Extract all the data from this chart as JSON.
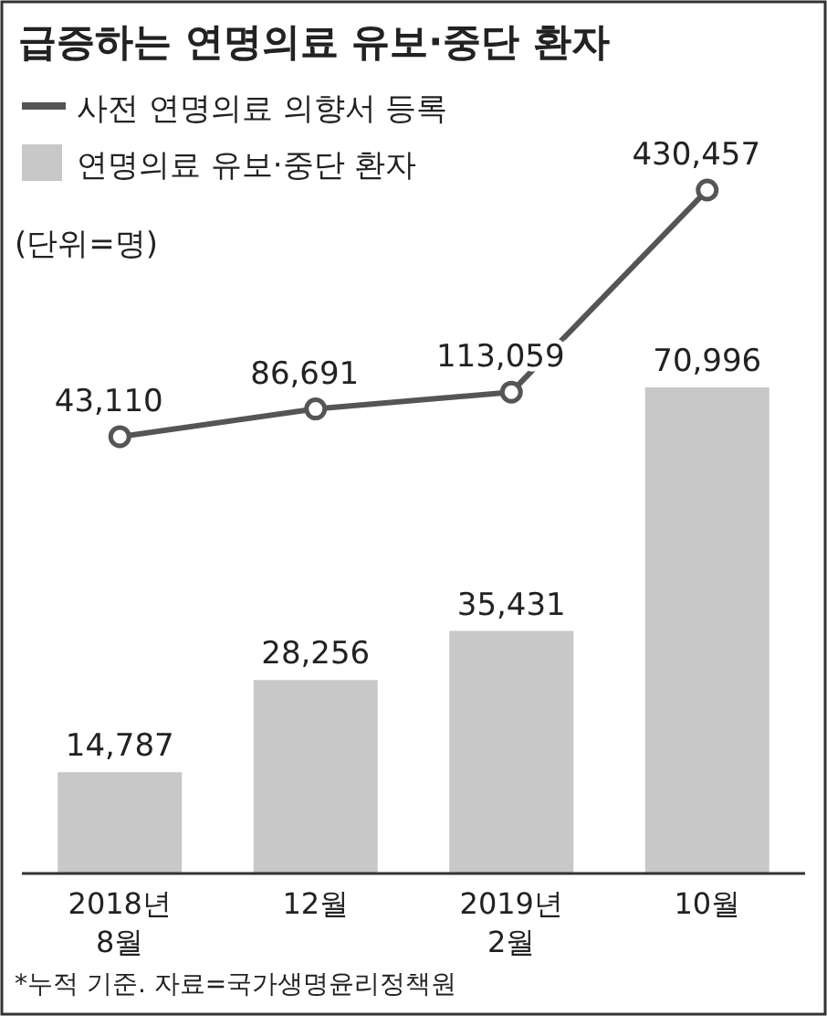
{
  "chart_data": {
    "type": "bar",
    "title": "급증하는 연명의료 유보·중단 환자",
    "categories": [
      "2018년\n8월",
      "12월",
      "2019년\n2월",
      "10월"
    ],
    "series": [
      {
        "name": "사전 연명의료 의향서 등록",
        "type": "line",
        "axis": "y2",
        "color": "#555555",
        "values": [
          43110,
          86691,
          113059,
          430457
        ],
        "value_labels": [
          "43,110",
          "86,691",
          "113,059",
          "430,457"
        ]
      },
      {
        "name": "연명의료 유보·중단 환자",
        "color": "#c8c8c8",
        "values": [
          14787,
          28256,
          35431,
          70996
        ],
        "value_labels": [
          "14,787",
          "28,256",
          "35,431",
          "70,996"
        ]
      }
    ],
    "legend": "top left",
    "marker": "circle",
    "annotations": [
      "(단위=명)",
      "*누적 기준. 자료=국가생명윤리정책원"
    ]
  }
}
